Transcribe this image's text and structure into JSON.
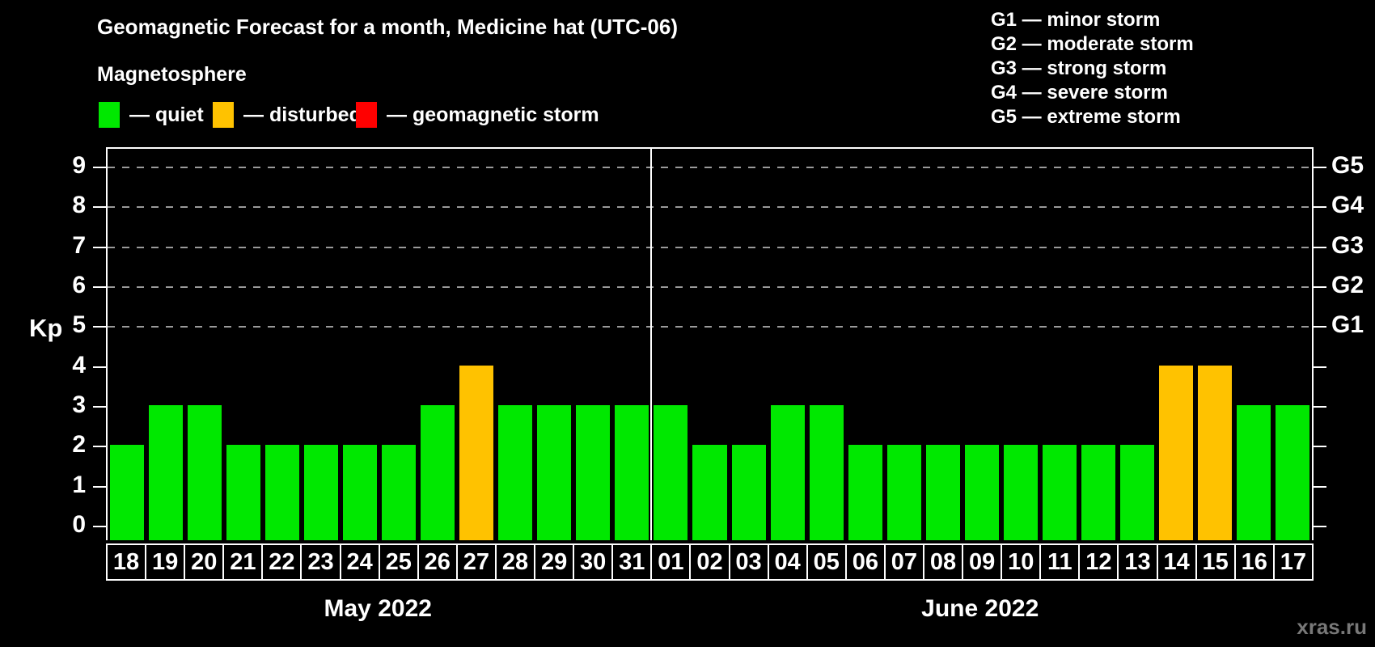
{
  "title": "Geomagnetic Forecast for a month, Medicine hat (UTC-06)",
  "legend": {
    "heading": "Magnetosphere",
    "items": [
      {
        "key": "quiet",
        "label": "— quiet",
        "color": "#00e800"
      },
      {
        "key": "disturbed",
        "label": "— disturbed",
        "color": "#ffc200"
      },
      {
        "key": "storm",
        "label": "— geomagnetic storm",
        "color": "#ff0000"
      }
    ]
  },
  "g_scale_legend": [
    "G1 — minor storm",
    "G2 — moderate storm",
    "G3 — strong storm",
    "G4 — severe storm",
    "G5 — extreme storm"
  ],
  "watermark": "xras.ru",
  "chart_data": {
    "type": "bar",
    "ylabel": "Kp",
    "ylim": [
      0,
      9
    ],
    "yticks": [
      0,
      1,
      2,
      3,
      4,
      5,
      6,
      7,
      8,
      9
    ],
    "gridlines_at": [
      5,
      6,
      7,
      8,
      9
    ],
    "right_axis_labels": [
      {
        "kp": 5,
        "label": "G1"
      },
      {
        "kp": 6,
        "label": "G2"
      },
      {
        "kp": 7,
        "label": "G3"
      },
      {
        "kp": 8,
        "label": "G4"
      },
      {
        "kp": 9,
        "label": "G5"
      }
    ],
    "status_colors": {
      "quiet": "#00e800",
      "disturbed": "#ffc200",
      "storm": "#ff0000"
    },
    "months": [
      {
        "label": "May 2022",
        "days": [
          "18",
          "19",
          "20",
          "21",
          "22",
          "23",
          "24",
          "25",
          "26",
          "27",
          "28",
          "29",
          "30",
          "31"
        ],
        "kp": [
          2,
          3,
          3,
          2,
          2,
          2,
          2,
          2,
          3,
          4,
          3,
          3,
          3,
          3
        ],
        "status": [
          "quiet",
          "quiet",
          "quiet",
          "quiet",
          "quiet",
          "quiet",
          "quiet",
          "quiet",
          "quiet",
          "disturbed",
          "quiet",
          "quiet",
          "quiet",
          "quiet"
        ]
      },
      {
        "label": "June 2022",
        "days": [
          "01",
          "02",
          "03",
          "04",
          "05",
          "06",
          "07",
          "08",
          "09",
          "10",
          "11",
          "12",
          "13",
          "14",
          "15",
          "16",
          "17"
        ],
        "kp": [
          3,
          2,
          2,
          3,
          3,
          2,
          2,
          2,
          2,
          2,
          2,
          2,
          2,
          4,
          4,
          3,
          3
        ],
        "status": [
          "quiet",
          "quiet",
          "quiet",
          "quiet",
          "quiet",
          "quiet",
          "quiet",
          "quiet",
          "quiet",
          "quiet",
          "quiet",
          "quiet",
          "quiet",
          "disturbed",
          "disturbed",
          "quiet",
          "quiet"
        ]
      }
    ]
  }
}
